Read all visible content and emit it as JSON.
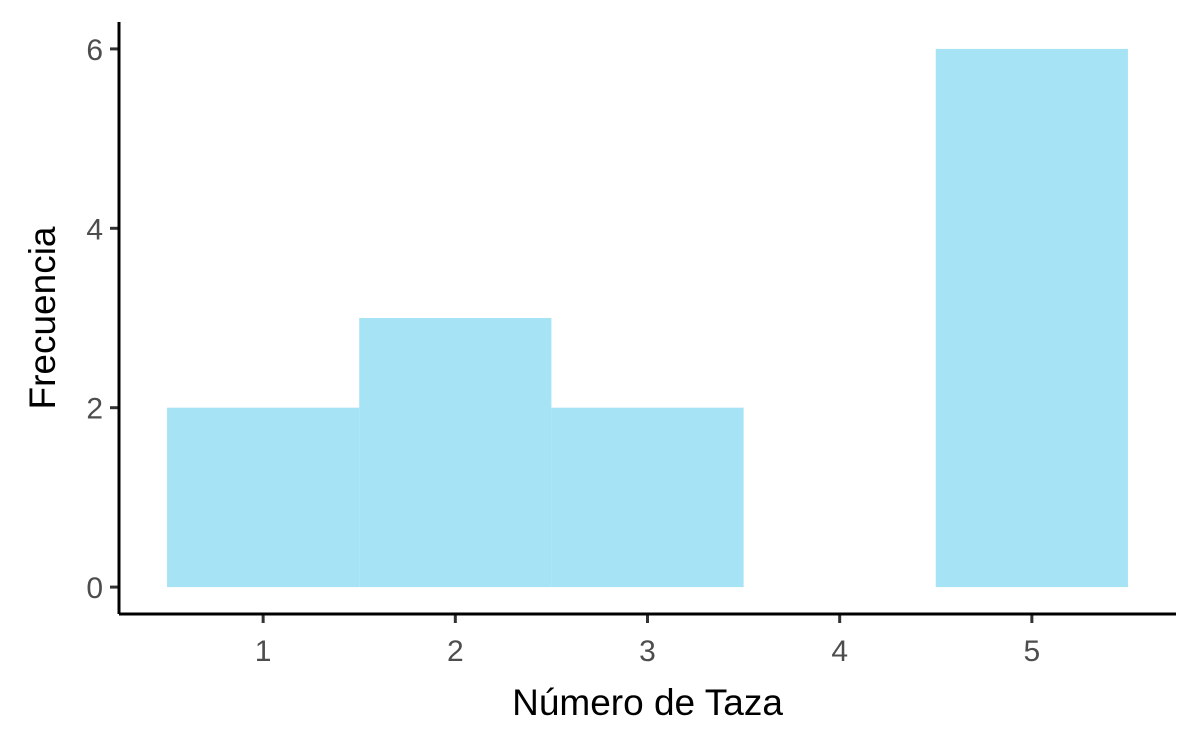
{
  "chart_data": {
    "type": "bar",
    "title": "",
    "xlabel": "Número de Taza",
    "ylabel": "Frecuencia",
    "categories": [
      "1",
      "2",
      "3",
      "4",
      "5"
    ],
    "x": [
      1,
      2,
      3,
      4,
      5
    ],
    "values": [
      2,
      3,
      2,
      0,
      6
    ],
    "xlim": [
      0.25,
      5.75
    ],
    "ylim": [
      -0.3,
      6.3
    ],
    "xticks": [
      1,
      2,
      3,
      4,
      5
    ],
    "yticks": [
      0,
      2,
      4,
      6
    ],
    "grid": false,
    "legend": "none",
    "bar_color": "#a6e3f5",
    "axis_color": "#000000",
    "tick_label_color": "#4d4d4d"
  }
}
